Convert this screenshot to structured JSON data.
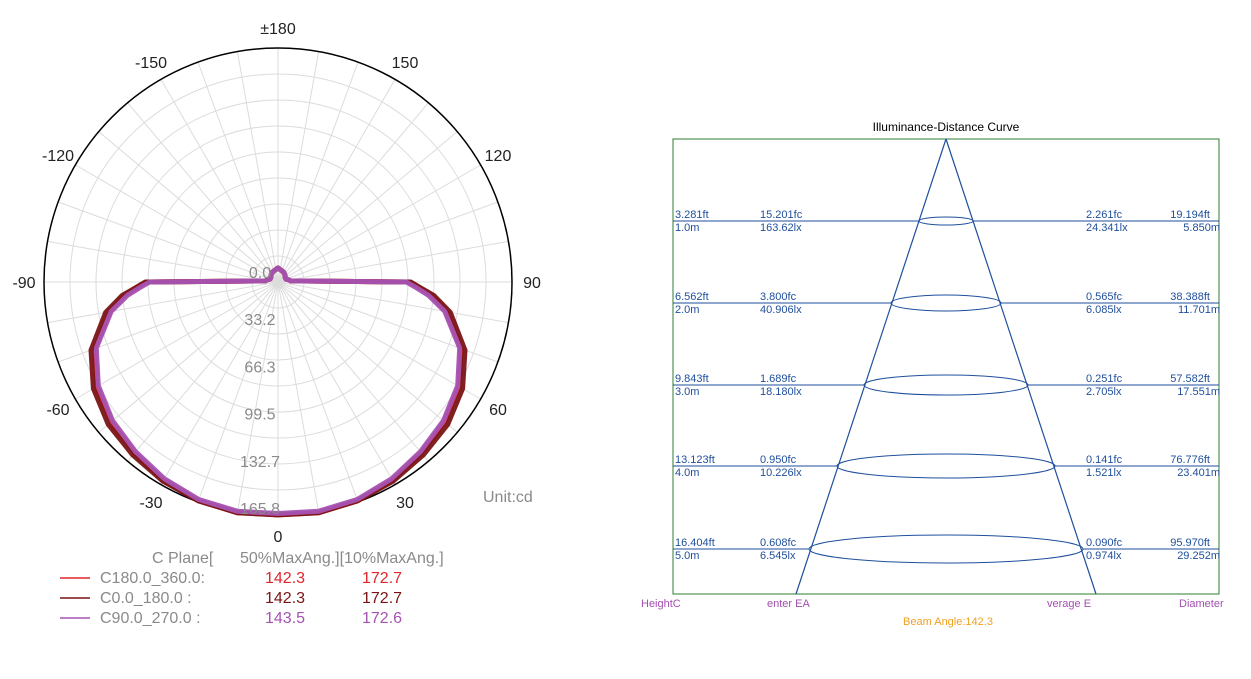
{
  "polar_chart": {
    "unit_label": "Unit:cd",
    "angle_labels": [
      "±180",
      "150",
      "120",
      "90",
      "60",
      "30",
      "0",
      "-30",
      "-60",
      "-90",
      "-120",
      "-150"
    ],
    "radial_labels": [
      "0.0",
      "33.2",
      "66.3",
      "99.5",
      "132.7",
      "165.8"
    ],
    "legend": {
      "headers": [
        "C Plane[",
        "50%MaxAng.][10%MaxAng.]"
      ],
      "rows": [
        {
          "name": "C180.0_360.0:",
          "half": "142.3",
          "tenth": "172.7",
          "color": "#e0262b"
        },
        {
          "name": "C0.0_180.0  :",
          "half": "142.3",
          "tenth": "172.7",
          "color": "#7a1414"
        },
        {
          "name": "C90.0_270.0 :",
          "half": "143.5",
          "tenth": "172.6",
          "color": "#a653b3"
        }
      ]
    }
  },
  "distance_chart": {
    "title": "Illuminance-Distance Curve",
    "rows": [
      {
        "height_ft": "3.281ft",
        "height_m": "1.0m",
        "center_fc": "15.201fc",
        "center_lx": "163.62lx",
        "avg_fc": "2.261fc",
        "avg_lx": "24.341lx",
        "diam_ft": "19.194ft",
        "diam_m": "5.850m"
      },
      {
        "height_ft": "6.562ft",
        "height_m": "2.0m",
        "center_fc": "3.800fc",
        "center_lx": "40.906lx",
        "avg_fc": "0.565fc",
        "avg_lx": "6.085lx",
        "diam_ft": "38.388ft",
        "diam_m": "11.701m"
      },
      {
        "height_ft": "9.843ft",
        "height_m": "3.0m",
        "center_fc": "1.689fc",
        "center_lx": "18.180lx",
        "avg_fc": "0.251fc",
        "avg_lx": "2.705lx",
        "diam_ft": "57.582ft",
        "diam_m": "17.551m"
      },
      {
        "height_ft": "13.123ft",
        "height_m": "4.0m",
        "center_fc": "0.950fc",
        "center_lx": "10.226lx",
        "avg_fc": "0.141fc",
        "avg_lx": "1.521lx",
        "diam_ft": "76.776ft",
        "diam_m": "23.401m"
      },
      {
        "height_ft": "16.404ft",
        "height_m": "5.0m",
        "center_fc": "0.608fc",
        "center_lx": "6.545lx",
        "avg_fc": "0.090fc",
        "avg_lx": "0.974lx",
        "diam_ft": "95.970ft",
        "diam_m": "29.252m"
      }
    ],
    "footer": {
      "height": "HeightC",
      "center": "enter EA",
      "average": "verage E",
      "diameter": "Diameter"
    },
    "beam_angle": "Beam Angle:142.3",
    "colors": {
      "lines": "#1f4f9c",
      "frame": "#2e7d32",
      "footer": "#a34fb0",
      "beam": "#f0a020"
    }
  },
  "chart_data": [
    {
      "type": "polar",
      "angle_ticks": [
        180,
        150,
        120,
        90,
        60,
        30,
        0,
        -30,
        -60,
        -90,
        -120,
        -150
      ],
      "rlim": [
        0,
        165.8
      ],
      "radial_ticks": [
        0.0,
        33.2,
        66.3,
        99.5,
        132.7,
        165.8
      ],
      "unit": "cd",
      "series": [
        {
          "name": "C180.0_360.0",
          "color": "#e0262b",
          "angles": [
            0,
            10,
            20,
            30,
            40,
            50,
            60,
            70,
            80,
            85,
            88,
            90,
            95,
            100,
            110,
            120,
            135,
            150,
            170,
            180
          ],
          "values": [
            165,
            166,
            165,
            162,
            158,
            154,
            148,
            138,
            121,
            109,
            99,
            93,
            9,
            8,
            6,
            6,
            7,
            8,
            9,
            10
          ]
        },
        {
          "name": "C0.0_180.0",
          "color": "#7a1414",
          "angles": [
            0,
            10,
            20,
            30,
            40,
            50,
            60,
            70,
            80,
            85,
            88,
            90,
            95,
            100,
            110,
            120,
            135,
            150,
            170,
            180
          ],
          "values": [
            165,
            166,
            165,
            163,
            160,
            157,
            151,
            141,
            124,
            111,
            100,
            94,
            9,
            8,
            6,
            6,
            7,
            8,
            9,
            10
          ]
        },
        {
          "name": "C90.0_270.0",
          "color": "#a653b3",
          "angles": [
            0,
            10,
            20,
            30,
            40,
            50,
            60,
            70,
            80,
            85,
            88,
            90,
            95,
            100,
            110,
            120,
            135,
            150,
            170,
            180
          ],
          "values": [
            164,
            165,
            164,
            161,
            157,
            153,
            147,
            137,
            120,
            107,
            97,
            91,
            9,
            8,
            6,
            6,
            7,
            8,
            9,
            10
          ]
        }
      ]
    },
    {
      "type": "table",
      "title": "Illuminance-Distance Curve",
      "beam_angle": 142.3,
      "heights_m": [
        1.0,
        2.0,
        3.0,
        4.0,
        5.0
      ],
      "center_lx": [
        163.62,
        40.906,
        18.18,
        10.226,
        6.545
      ],
      "average_lx": [
        24.341,
        6.085,
        2.705,
        1.521,
        0.974
      ],
      "diameter_m": [
        5.85,
        11.701,
        17.551,
        23.401,
        29.252
      ]
    }
  ]
}
